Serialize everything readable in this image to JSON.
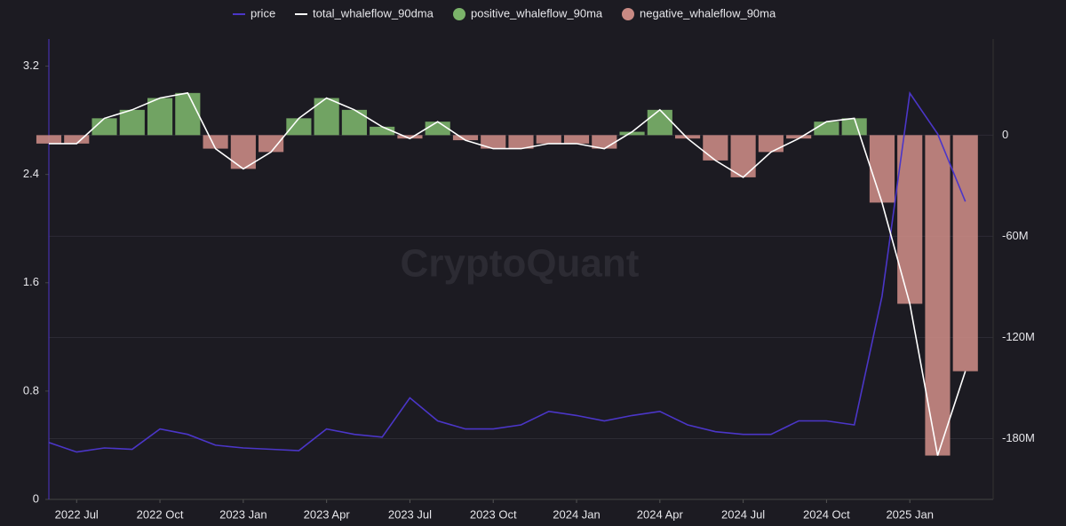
{
  "chart_data": {
    "type": "combo",
    "watermark": "CryptoQuant",
    "x": [
      "2022-06",
      "2022-07",
      "2022-08",
      "2022-09",
      "2022-10",
      "2022-11",
      "2022-12",
      "2023-01",
      "2023-02",
      "2023-03",
      "2023-04",
      "2023-05",
      "2023-06",
      "2023-07",
      "2023-08",
      "2023-09",
      "2023-10",
      "2023-11",
      "2023-12",
      "2024-01",
      "2024-02",
      "2024-03",
      "2024-04",
      "2024-05",
      "2024-06",
      "2024-07",
      "2024-08",
      "2024-09",
      "2024-10",
      "2024-11",
      "2024-12",
      "2025-01",
      "2025-02",
      "2025-03"
    ],
    "xlim": [
      "2022-06",
      "2025-04"
    ],
    "xticks": [
      {
        "value": "2022-07",
        "label": "2022 Jul"
      },
      {
        "value": "2022-10",
        "label": "2022 Oct"
      },
      {
        "value": "2023-01",
        "label": "2023 Jan"
      },
      {
        "value": "2023-04",
        "label": "2023 Apr"
      },
      {
        "value": "2023-07",
        "label": "2023 Jul"
      },
      {
        "value": "2023-10",
        "label": "2023 Oct"
      },
      {
        "value": "2024-01",
        "label": "2024 Jan"
      },
      {
        "value": "2024-04",
        "label": "2024 Apr"
      },
      {
        "value": "2024-07",
        "label": "2024 Jul"
      },
      {
        "value": "2024-10",
        "label": "2024 Oct"
      },
      {
        "value": "2025-01",
        "label": "2025 Jan"
      }
    ],
    "ylim": [
      0,
      3.4
    ],
    "yticks": [
      0,
      0.8,
      1.6,
      2.4,
      3.2
    ],
    "y2lim": [
      -216000000,
      57000000
    ],
    "y2ticks": [
      0,
      {
        "value": -60000000,
        "label": "-60M"
      },
      {
        "value": -120000000,
        "label": "-120M"
      },
      {
        "value": -180000000,
        "label": "-180M"
      }
    ],
    "grid": true,
    "legend": "top",
    "series": [
      {
        "name": "price",
        "color": "#4b36c8",
        "style": "line",
        "axis": "y",
        "values": [
          0.42,
          0.35,
          0.38,
          0.37,
          0.52,
          0.48,
          0.4,
          0.38,
          0.37,
          0.36,
          0.52,
          0.48,
          0.46,
          0.75,
          0.58,
          0.52,
          0.52,
          0.55,
          0.65,
          0.62,
          0.58,
          0.62,
          0.65,
          0.55,
          0.5,
          0.48,
          0.48,
          0.58,
          0.58,
          0.55,
          1.5,
          3.0,
          2.7,
          2.2
        ]
      },
      {
        "name": "total_whaleflow_90dma",
        "color": "#ffffff",
        "style": "line",
        "axis": "y2",
        "values": [
          -5000000,
          -5000000,
          10000000,
          15000000,
          22000000,
          25000000,
          -8000000,
          -20000000,
          -10000000,
          10000000,
          22000000,
          15000000,
          5000000,
          -2000000,
          8000000,
          -3000000,
          -8000000,
          -8000000,
          -5000000,
          -5000000,
          -8000000,
          2000000,
          15000000,
          -2000000,
          -15000000,
          -25000000,
          -10000000,
          -2000000,
          8000000,
          10000000,
          -40000000,
          -100000000,
          -190000000,
          -140000000
        ]
      },
      {
        "name": "positive_whaleflow_90ma",
        "color": "#7bb36a",
        "style": "bar",
        "axis": "y2",
        "values": [
          null,
          null,
          10000000,
          15000000,
          22000000,
          25000000,
          null,
          null,
          null,
          10000000,
          22000000,
          15000000,
          5000000,
          null,
          8000000,
          null,
          null,
          null,
          null,
          null,
          null,
          2000000,
          15000000,
          null,
          null,
          null,
          null,
          null,
          8000000,
          10000000,
          null,
          null,
          null,
          null
        ]
      },
      {
        "name": "negative_whaleflow_90ma",
        "color": "#c98a84",
        "style": "bar",
        "axis": "y2",
        "values": [
          -5000000,
          -5000000,
          null,
          null,
          null,
          null,
          -8000000,
          -20000000,
          -10000000,
          null,
          null,
          null,
          null,
          -2000000,
          null,
          -3000000,
          -8000000,
          -8000000,
          -5000000,
          -5000000,
          -8000000,
          null,
          null,
          -2000000,
          -15000000,
          -25000000,
          -10000000,
          -2000000,
          null,
          null,
          -40000000,
          -100000000,
          -190000000,
          -140000000
        ]
      }
    ]
  }
}
